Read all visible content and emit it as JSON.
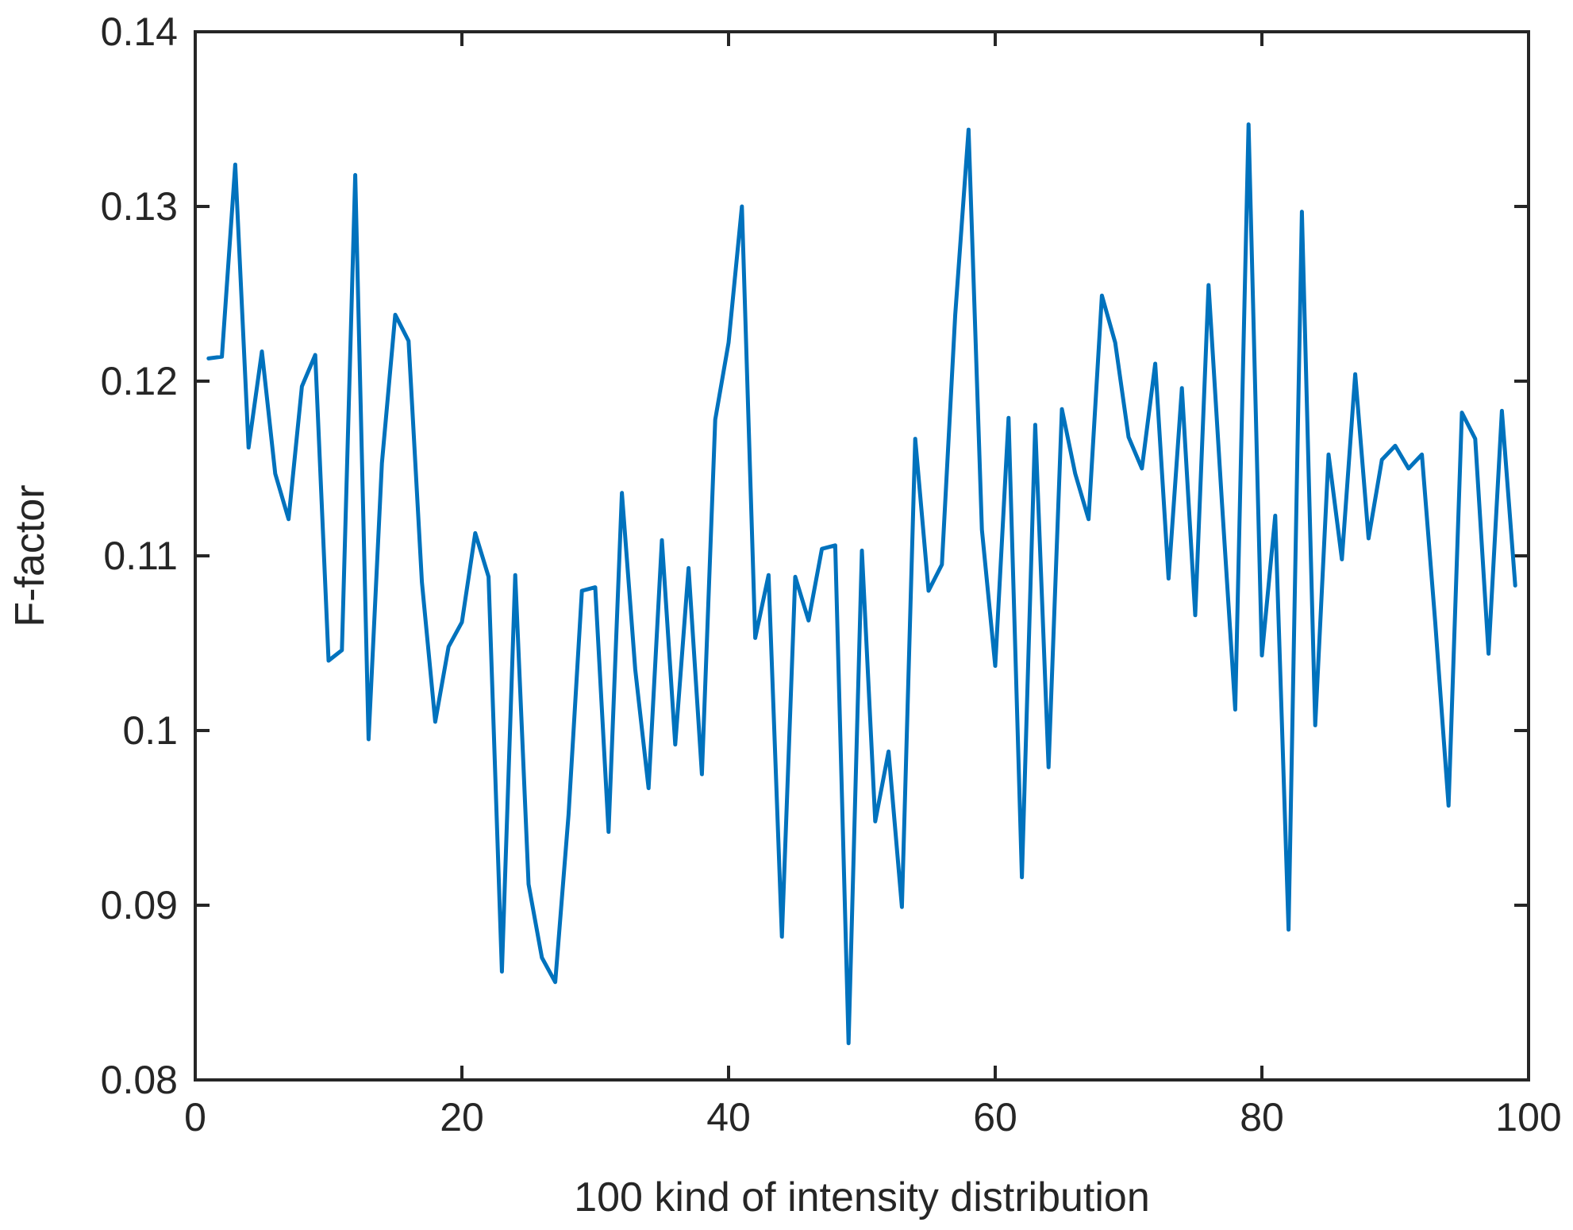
{
  "chart_data": {
    "type": "line",
    "title": "",
    "xlabel": "100 kind of intensity distribution",
    "ylabel": "F-factor",
    "xlim": [
      0,
      100
    ],
    "ylim": [
      0.08,
      0.14
    ],
    "xticks": [
      0,
      20,
      40,
      60,
      80,
      100
    ],
    "xtick_labels": [
      "0",
      "20",
      "40",
      "60",
      "80",
      "100"
    ],
    "yticks": [
      0.08,
      0.09,
      0.1,
      0.11,
      0.12,
      0.13,
      0.14
    ],
    "ytick_labels": [
      "0.08",
      "0.09",
      "0.1",
      "0.11",
      "0.12",
      "0.13",
      "0.14"
    ],
    "grid": false,
    "box": true,
    "series": [
      {
        "name": "F-factor",
        "color": "#0072BD",
        "x": [
          1,
          2,
          3,
          4,
          5,
          6,
          7,
          8,
          9,
          10,
          11,
          12,
          13,
          14,
          15,
          16,
          17,
          18,
          19,
          20,
          21,
          22,
          23,
          24,
          25,
          26,
          27,
          28,
          29,
          30,
          31,
          32,
          33,
          34,
          35,
          36,
          37,
          38,
          39,
          40,
          41,
          42,
          43,
          44,
          45,
          46,
          47,
          48,
          49,
          50,
          51,
          52,
          53,
          54,
          55,
          56,
          57,
          58,
          59,
          60,
          61,
          62,
          63,
          64,
          65,
          66,
          67,
          68,
          69,
          70,
          71,
          72,
          73,
          74,
          75,
          76,
          77,
          78,
          79,
          80,
          81,
          82,
          83,
          84,
          85,
          86,
          87,
          88,
          89,
          90,
          91,
          92,
          93,
          94,
          95,
          96,
          97,
          98,
          99
        ],
        "values": [
          0.1213,
          0.1214,
          0.1324,
          0.1162,
          0.1217,
          0.1147,
          0.1121,
          0.1197,
          0.1215,
          0.104,
          0.1046,
          0.1318,
          0.0995,
          0.1153,
          0.1238,
          0.1223,
          0.1085,
          0.1005,
          0.1048,
          0.1062,
          0.1113,
          0.1088,
          0.0862,
          0.1089,
          0.0912,
          0.087,
          0.0856,
          0.0952,
          0.108,
          0.1082,
          0.0942,
          0.1136,
          0.1035,
          0.0967,
          0.1109,
          0.0992,
          0.1093,
          0.0975,
          0.1178,
          0.1222,
          0.13,
          0.1053,
          0.1089,
          0.0882,
          0.1088,
          0.1063,
          0.1104,
          0.1106,
          0.0821,
          0.1103,
          0.0948,
          0.0988,
          0.0899,
          0.1167,
          0.108,
          0.1095,
          0.1238,
          0.1344,
          0.1115,
          0.1037,
          0.1179,
          0.0916,
          0.1175,
          0.0979,
          0.1184,
          0.1147,
          0.1121,
          0.1249,
          0.1222,
          0.1168,
          0.115,
          0.121,
          0.1087,
          0.1196,
          0.1066,
          0.1255,
          0.1131,
          0.1012,
          0.1347,
          0.1043,
          0.1123,
          0.0886,
          0.1297,
          0.1003,
          0.1158,
          0.1098,
          0.1204,
          0.111,
          0.1155,
          0.1163,
          0.115,
          0.1158,
          0.1062,
          0.0957,
          0.1182,
          0.1167,
          0.1044,
          0.1183,
          0.1083
        ]
      }
    ]
  }
}
